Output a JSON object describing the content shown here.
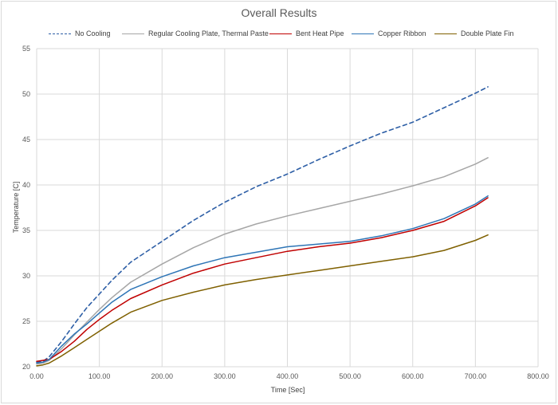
{
  "chart_data": {
    "type": "line",
    "title": "Overall Results",
    "xlabel": "Time [Sec]",
    "ylabel": "Temperature [C]",
    "xlim": [
      0,
      800
    ],
    "ylim": [
      20,
      55
    ],
    "x_ticks": [
      "0.00",
      "100.00",
      "200.00",
      "300.00",
      "400.00",
      "500.00",
      "600.00",
      "700.00",
      "800.00"
    ],
    "y_ticks": [
      "20",
      "25",
      "30",
      "35",
      "40",
      "45",
      "50",
      "55"
    ],
    "grid": "horizontal and vertical major gridlines",
    "legend_position": "top",
    "x": [
      0,
      10,
      20,
      40,
      60,
      80,
      100,
      120,
      150,
      200,
      250,
      300,
      350,
      400,
      450,
      500,
      550,
      600,
      650,
      700,
      720
    ],
    "series": [
      {
        "name": "No Cooling",
        "color": "#2e5fa6",
        "style": "dashed",
        "values": [
          20.5,
          20.6,
          21.1,
          22.8,
          24.7,
          26.5,
          28.0,
          29.5,
          31.5,
          33.8,
          36.1,
          38.1,
          39.8,
          41.2,
          42.8,
          44.3,
          45.7,
          46.9,
          48.5,
          50.1,
          50.8
        ]
      },
      {
        "name": "Regular Cooling Plate, Thermal Paste",
        "color": "#a6a6a6",
        "style": "solid",
        "values": [
          20.3,
          20.4,
          20.7,
          22.0,
          23.5,
          24.9,
          26.3,
          27.6,
          29.3,
          31.3,
          33.1,
          34.6,
          35.7,
          36.6,
          37.4,
          38.2,
          39.0,
          39.9,
          40.9,
          42.3,
          43.0
        ]
      },
      {
        "name": "Bent Heat Pipe",
        "color": "#c00000",
        "style": "solid",
        "values": [
          20.6,
          20.7,
          20.8,
          21.7,
          22.8,
          24.1,
          25.2,
          26.2,
          27.5,
          29.0,
          30.3,
          31.3,
          32.0,
          32.7,
          33.2,
          33.6,
          34.2,
          35.0,
          36.0,
          37.7,
          38.6
        ]
      },
      {
        "name": "Copper Ribbon",
        "color": "#2e75b6",
        "style": "solid",
        "values": [
          20.4,
          20.5,
          20.8,
          22.3,
          23.6,
          24.7,
          25.9,
          27.1,
          28.5,
          29.9,
          31.1,
          32.0,
          32.6,
          33.2,
          33.5,
          33.8,
          34.4,
          35.2,
          36.3,
          37.9,
          38.8
        ]
      },
      {
        "name": "Double Plate Fin",
        "color": "#7f6000",
        "style": "solid",
        "values": [
          20.1,
          20.2,
          20.4,
          21.2,
          22.1,
          23.0,
          23.9,
          24.8,
          26.0,
          27.3,
          28.2,
          29.0,
          29.6,
          30.1,
          30.6,
          31.1,
          31.6,
          32.1,
          32.8,
          33.9,
          34.5
        ]
      }
    ]
  }
}
